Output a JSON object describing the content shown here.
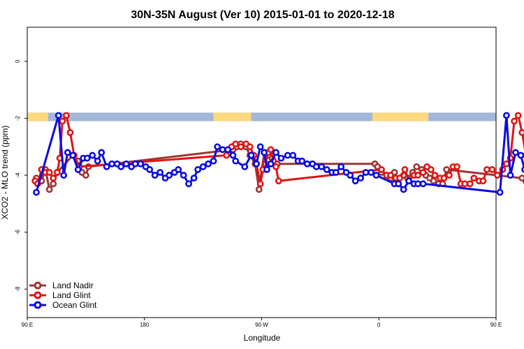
{
  "chart_data": {
    "type": "line",
    "title": "30N-35N August (Ver 10)   2015-01-01 to 2020-12-18",
    "xlabel": "Longitude",
    "ylabel": "XCO2 - MLO trend (ppm)",
    "xlim": [
      90,
      450
    ],
    "ylim": [
      -9,
      1.2
    ],
    "x_ticks": [
      {
        "value": 90,
        "label": "90 E"
      },
      {
        "value": 180,
        "label": "180"
      },
      {
        "value": 270,
        "label": "90 W"
      },
      {
        "value": 360,
        "label": "0"
      },
      {
        "value": 450,
        "label": "90 E"
      },
      {
        "value": 540,
        "label": "180"
      }
    ],
    "y_ticks": [
      {
        "value": 0,
        "label": "0"
      },
      {
        "value": -2,
        "label": "-2"
      },
      {
        "value": -4,
        "label": "-4"
      },
      {
        "value": -6,
        "label": "-6"
      },
      {
        "value": -8,
        "label": "-8"
      }
    ],
    "land_ocean_band": {
      "y_range": [
        -2.1,
        -1.8
      ],
      "ocean_color": "#a3b8d8",
      "land_color": "#fcd97c",
      "land_segments": [
        [
          90,
          106
        ],
        [
          233,
          262
        ],
        [
          355,
          398
        ],
        [
          474,
          481
        ]
      ]
    },
    "legend_position": "bottom-left",
    "series": [
      {
        "name": "Land Nadir",
        "color": "#9a3535",
        "x": [
          97,
          101,
          104,
          107,
          110,
          113,
          125,
          129,
          132,
          135,
          137,
          248,
          251,
          254,
          258,
          261,
          265,
          268,
          272,
          275,
          278,
          282,
          357,
          359,
          362,
          366,
          369,
          372,
          375,
          379,
          382,
          386,
          389,
          393,
          396,
          399,
          402,
          406,
          409,
          412,
          470,
          474,
          478,
          481,
          485,
          488,
          491,
          494,
          497
        ],
        "y": [
          -4.1,
          -4.2,
          -3.8,
          -4.5,
          -4.3,
          -3.9,
          -3.3,
          -3.5,
          -3.9,
          -4.0,
          -3.7,
          -3.1,
          -3.0,
          -2.9,
          -3.0,
          -3.3,
          -3.6,
          -4.5,
          -3.2,
          -3.3,
          -3.4,
          -3.6,
          -3.6,
          -3.7,
          -3.9,
          -4.0,
          -4.1,
          -3.9,
          -4.3,
          -4.0,
          -4.1,
          -3.9,
          -3.7,
          -3.8,
          -4.0,
          -4.1,
          -4.2,
          -4.3,
          -4.3,
          -3.8,
          -4.1,
          -4.5,
          -4.3,
          -3.9,
          -4.1,
          -3.8,
          -3.6,
          -3.9,
          -4.0
        ]
      },
      {
        "name": "Land Glint",
        "color": "#e31212",
        "x": [
          96,
          98,
          101,
          104,
          107,
          110,
          113,
          115,
          117,
          120,
          123,
          126,
          130,
          243,
          247,
          250,
          254,
          258,
          261,
          264,
          266,
          269,
          271,
          273,
          275,
          277,
          279,
          281,
          283,
          362,
          366,
          369,
          373,
          376,
          380,
          383,
          387,
          390,
          394,
          397,
          400,
          403,
          407,
          410,
          414,
          417,
          420,
          423,
          426,
          430,
          433,
          437,
          440,
          443,
          447,
          451,
          455,
          458,
          461,
          464,
          467,
          470,
          473,
          476,
          480,
          483,
          486,
          489,
          492,
          495,
          498
        ],
        "y": [
          -4.2,
          -4.3,
          -3.8,
          -3.9,
          -3.9,
          -4.1,
          -3.9,
          -3.4,
          -2.1,
          -1.9,
          -2.5,
          -3.3,
          -3.7,
          -3.3,
          -3.0,
          -2.9,
          -3.0,
          -2.9,
          -3.0,
          -3.3,
          -3.6,
          -4.3,
          -3.8,
          -3.6,
          -3.2,
          -3.1,
          -3.5,
          -3.7,
          -4.2,
          -3.8,
          -4.0,
          -4.0,
          -4.1,
          -4.1,
          -3.8,
          -4.2,
          -4.0,
          -4.0,
          -3.9,
          -3.7,
          -3.8,
          -4.0,
          -4.1,
          -4.1,
          -4.0,
          -3.7,
          -3.7,
          -4.3,
          -4.3,
          -4.3,
          -4.1,
          -4.2,
          -4.2,
          -3.8,
          -3.8,
          -4.0,
          -3.8,
          -3.6,
          -3.4,
          -2.1,
          -1.9,
          -2.5,
          -3.3,
          -3.6,
          -3.6,
          -3.7,
          -3.5,
          -3.4,
          -3.5,
          -3.6,
          -3.7
        ]
      },
      {
        "name": "Ocean Glint",
        "color": "#0a0ae0",
        "x": [
          97,
          114,
          118,
          121,
          125,
          129,
          133,
          136,
          140,
          144,
          147,
          151,
          155,
          159,
          162,
          166,
          170,
          173,
          177,
          181,
          184,
          188,
          192,
          196,
          199,
          203,
          206,
          210,
          214,
          218,
          221,
          225,
          229,
          233,
          236,
          240,
          244,
          248,
          250,
          257,
          262,
          266,
          269,
          272,
          274,
          277,
          281,
          285,
          290,
          294,
          298,
          301,
          305,
          309,
          312,
          316,
          320,
          324,
          327,
          331,
          335,
          338,
          342,
          346,
          350,
          354,
          358,
          372,
          375,
          379,
          383,
          387,
          390,
          394,
          453,
          458,
          461,
          465,
          469,
          472,
          476,
          479,
          482,
          486,
          490,
          494,
          498
        ],
        "y": [
          -4.6,
          -1.9,
          -4.0,
          -3.2,
          -3.3,
          -3.8,
          -3.4,
          -3.4,
          -3.3,
          -3.5,
          -3.2,
          -3.7,
          -3.6,
          -3.6,
          -3.7,
          -3.6,
          -3.7,
          -3.6,
          -3.6,
          -3.7,
          -3.8,
          -4.0,
          -3.9,
          -4.1,
          -4.0,
          -3.9,
          -3.8,
          -4.0,
          -4.3,
          -4.1,
          -3.8,
          -3.7,
          -3.6,
          -3.5,
          -3.0,
          -3.1,
          -3.1,
          -3.3,
          -3.5,
          -3.7,
          -3.3,
          -3.6,
          -3.0,
          -3.2,
          -3.8,
          -3.6,
          -3.2,
          -3.4,
          -3.3,
          -3.3,
          -3.5,
          -3.5,
          -3.6,
          -3.6,
          -3.7,
          -3.7,
          -3.8,
          -3.9,
          -3.9,
          -3.7,
          -3.9,
          -4.0,
          -4.2,
          -4.1,
          -3.9,
          -3.9,
          -4.0,
          -4.3,
          -4.3,
          -4.5,
          -4.2,
          -4.3,
          -4.3,
          -4.3,
          -4.6,
          -1.9,
          -4.0,
          -3.2,
          -3.3,
          -3.8,
          -3.4,
          -3.4,
          -3.3,
          -3.5,
          -3.2,
          -3.7,
          -3.6
        ]
      }
    ]
  }
}
